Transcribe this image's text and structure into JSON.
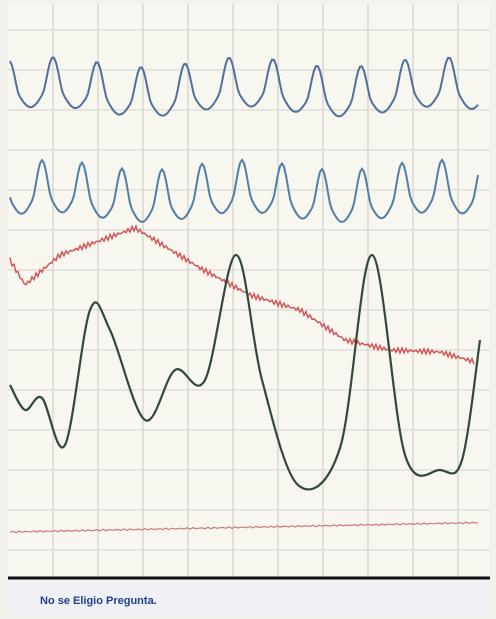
{
  "status_bar": {
    "message": "No se Eligio Pregunta."
  }
}
